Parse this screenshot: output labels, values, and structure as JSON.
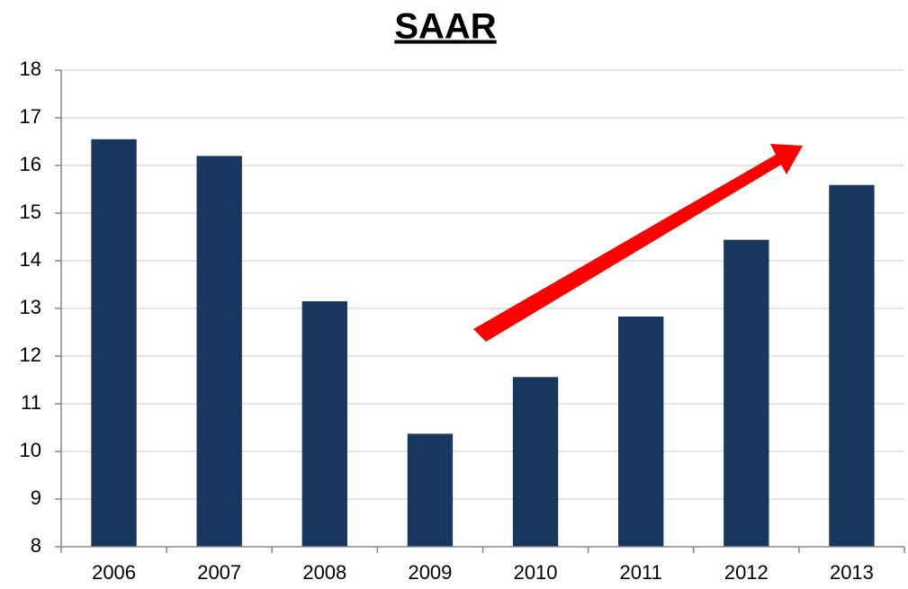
{
  "chart_data": {
    "type": "bar",
    "title": "SAAR",
    "categories": [
      "2006",
      "2007",
      "2008",
      "2009",
      "2010",
      "2011",
      "2012",
      "2013"
    ],
    "values": [
      16.55,
      16.2,
      13.15,
      10.37,
      11.56,
      12.83,
      14.44,
      15.59
    ],
    "color": "#17375e",
    "ylim": [
      8,
      18
    ],
    "yticks": [
      8,
      9,
      10,
      11,
      12,
      13,
      14,
      15,
      16,
      17,
      18
    ],
    "grid": true
  }
}
